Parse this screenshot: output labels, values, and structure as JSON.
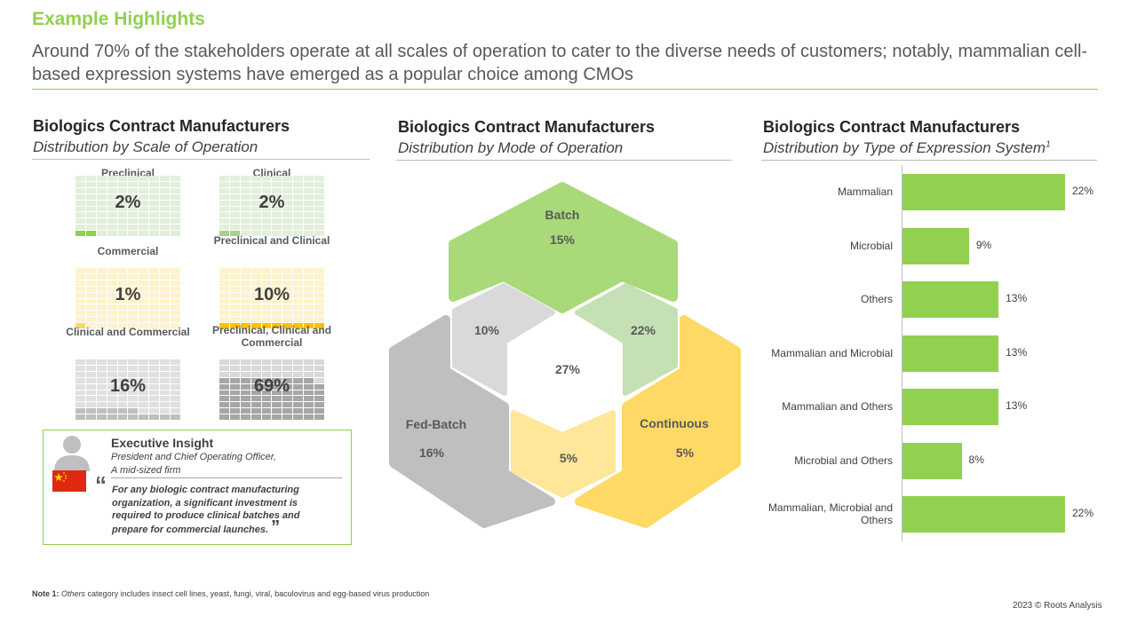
{
  "header": {
    "title": "Example Highlights",
    "subtitle": "Around 70% of the stakeholders operate at all scales of operation to cater to the diverse needs of customers; notably, mammalian cell-based expression systems have emerged as a popular choice among CMOs"
  },
  "colors": {
    "accent": "#92d050",
    "green_light": "#e2efda",
    "yellow": "#ffc000",
    "yellow_light": "#fff2cc",
    "gray": "#bfbfbf",
    "gray_light": "#d9d9d9"
  },
  "chart_data": [
    {
      "type": "waffle",
      "title": "Biologics Contract Manufacturers",
      "subtitle": "Distribution by Scale of Operation",
      "items": [
        {
          "label": "Preclinical",
          "value": 2,
          "pct": "2%",
          "color": "#92d050",
          "bg": "#e2efda"
        },
        {
          "label": "Clinical",
          "value": 2,
          "pct": "2%",
          "color": "#a9d18e",
          "bg": "#e2efda"
        },
        {
          "label": "Commercial",
          "value": 1,
          "pct": "1%",
          "color": "#ffd966",
          "bg": "#fff2cc"
        },
        {
          "label": "Preclinical and Clinical",
          "value": 10,
          "pct": "10%",
          "color": "#ffc000",
          "bg": "#fff2cc"
        },
        {
          "label": "Clinical and Commercial",
          "value": 16,
          "pct": "16%",
          "color": "#bfbfbf",
          "bg": "#e0e0e0"
        },
        {
          "label": "Preclinical, Clinical and Commercial",
          "value": 69,
          "pct": "69%",
          "color": "#a6a6a6",
          "bg": "#d9d9d9"
        }
      ]
    },
    {
      "type": "venn",
      "title": "Biologics Contract Manufacturers",
      "subtitle": "Distribution by Mode of Operation",
      "sets": [
        {
          "label": "Batch",
          "pct": "15%"
        },
        {
          "label": "Fed-Batch",
          "pct": "16%"
        },
        {
          "label": "Continuous",
          "pct": "5%"
        }
      ],
      "overlaps": {
        "batch_fedbatch": "10%",
        "batch_continuous": "22%",
        "fedbatch_continuous": "5%",
        "all": "27%"
      }
    },
    {
      "type": "bar",
      "orientation": "horizontal",
      "title": "Biologics Contract Manufacturers",
      "subtitle": "Distribution by Type of Expression System",
      "title_sup": "1",
      "categories": [
        "Mammalian",
        "Microbial",
        "Others",
        "Mammalian and Microbial",
        "Mammalian and Others",
        "Microbial and Others",
        "Mammalian, Microbial and Others"
      ],
      "values": [
        22,
        9,
        13,
        13,
        13,
        8,
        22
      ],
      "labels": [
        "22%",
        "9%",
        "13%",
        "13%",
        "13%",
        "8%",
        "22%"
      ],
      "xlim": [
        0,
        22
      ],
      "color": "#92d050"
    }
  ],
  "insight": {
    "heading": "Executive Insight",
    "role": "President and Chief Operating Officer,",
    "firm": "A mid-sized firm",
    "quote": "For any biologic contract manufacturing organization, a significant investment is required to produce clinical batches and prepare for commercial launches.",
    "open_quote": "“",
    "close_quote": "”",
    "flag": "china-flag"
  },
  "footer": {
    "note_label": "Note 1:",
    "note_italic": "Others",
    "note_text": " category includes insect cell lines, yeast, fungi, viral, baculovirus and egg-based virus production",
    "copyright": "2023 © Roots Analysis"
  }
}
